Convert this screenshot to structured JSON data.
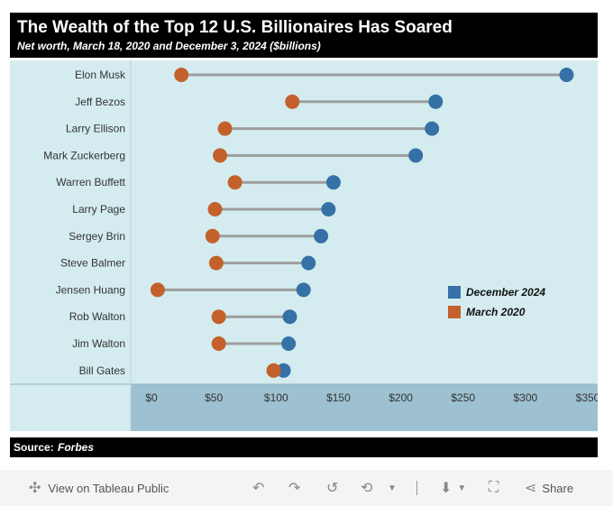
{
  "header": {
    "title": "The Wealth of the Top 12 U.S. Billionaires Has Soared",
    "subtitle": "Net worth, March 18, 2020 and December 3, 2024 ($billions)"
  },
  "source": {
    "label": "Source:",
    "name": "Forbes"
  },
  "toolbar": {
    "view_label": "View on Tableau Public",
    "share_label": "Share"
  },
  "colors": {
    "december_2024": "#3571a6",
    "march_2020": "#c4602b",
    "plot_bg": "#d4ecef",
    "axis_bg": "#9dc1d1",
    "connector": "#9e9e9e"
  },
  "chart_data": {
    "type": "dumbbell",
    "categories": [
      "Elon Musk",
      "Jeff Bezos",
      "Larry Ellison",
      "Mark Zuckerberg",
      "Warren Buffett",
      "Larry Page",
      "Sergey Brin",
      "Steve Balmer",
      "Jensen Huang",
      "Rob Walton",
      "Jim Walton",
      "Bill Gates"
    ],
    "series": [
      {
        "name": "December 2024",
        "values": [
          333,
          228,
          225,
          212,
          146,
          142,
          136,
          126,
          122,
          111,
          110,
          106
        ]
      },
      {
        "name": "March 2020",
        "values": [
          24,
          113,
          59,
          55,
          67,
          51,
          49,
          52,
          5,
          54,
          54,
          98
        ]
      }
    ],
    "x_ticks": [
      "$0",
      "$50",
      "$100",
      "$150",
      "$200",
      "$250",
      "$300",
      "$350"
    ],
    "x_tick_values": [
      0,
      50,
      100,
      150,
      200,
      250,
      300,
      350
    ],
    "xlim": [
      0,
      350
    ],
    "legend_position": "right",
    "grid": false
  }
}
